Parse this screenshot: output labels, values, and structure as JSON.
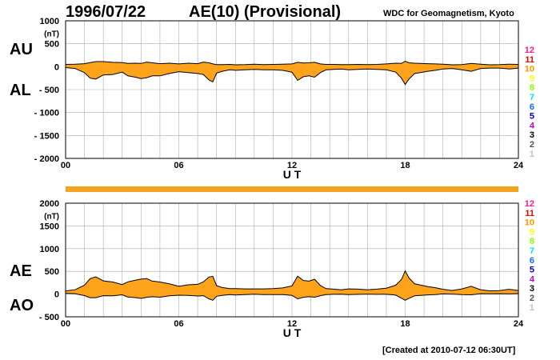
{
  "header": {
    "date": "1996/07/22",
    "title": "AE(10) (Provisional)",
    "org": "WDC for Geomagnetism, Kyoto"
  },
  "footer": {
    "created": "[Created at 2010-07-12 06:30UT]"
  },
  "colors": {
    "fill": "#ffa31a",
    "grid": "#aaaaaa",
    "line": "#000000",
    "bar": "#f5a41f",
    "station_scale": [
      "#ff1493",
      "#ee0000",
      "#ff9900",
      "#ffff00",
      "#88ff00",
      "#00e5ee",
      "#1e66ff",
      "#0000bb",
      "#cc00cc",
      "#000000",
      "#555555",
      "#c0c0c0"
    ]
  },
  "station_scale_labels": [
    "12",
    "11",
    "10",
    "9",
    "8",
    "7",
    "6",
    "5",
    "4",
    "3",
    "2",
    "1"
  ],
  "chart_data": [
    {
      "type": "area",
      "panel": "AU/AL",
      "labels": [
        "AU",
        "AL"
      ],
      "unit": "(nT)",
      "xlabel": "U T",
      "xlim": [
        0,
        24
      ],
      "xticks": [
        0,
        6,
        12,
        18,
        24
      ],
      "xtick_labels": [
        "00",
        "06",
        "12",
        "18",
        "24"
      ],
      "ylim": [
        -2000,
        1000
      ],
      "yticks": [
        1000,
        500,
        0,
        -500,
        -1000,
        -1500,
        -2000
      ],
      "ytick_labels": [
        "1000",
        "500",
        "0",
        "- 500",
        "- 1000",
        "- 1500",
        "- 2000"
      ],
      "grid": true,
      "x": [
        0,
        0.5,
        1.0,
        1.3,
        1.6,
        2.0,
        2.5,
        3.0,
        3.3,
        3.7,
        4.0,
        4.3,
        4.6,
        5.0,
        5.5,
        6.0,
        6.5,
        7.0,
        7.3,
        7.6,
        7.8,
        8.0,
        8.3,
        8.7,
        9.0,
        9.5,
        10.0,
        10.5,
        11.0,
        11.5,
        12.0,
        12.3,
        12.6,
        12.9,
        13.2,
        13.5,
        13.8,
        14.2,
        14.6,
        15.0,
        15.5,
        16.0,
        16.5,
        17.0,
        17.5,
        17.8,
        18.0,
        18.2,
        18.5,
        18.8,
        19.2,
        19.6,
        20.0,
        20.5,
        21.0,
        21.5,
        22.0,
        22.5,
        23.0,
        23.5,
        24.0
      ],
      "series": [
        {
          "name": "AU",
          "values": [
            50,
            55,
            65,
            90,
            110,
            110,
            95,
            90,
            70,
            75,
            70,
            100,
            85,
            65,
            75,
            60,
            75,
            65,
            100,
            85,
            60,
            45,
            45,
            50,
            40,
            45,
            55,
            45,
            50,
            55,
            60,
            95,
            80,
            85,
            95,
            60,
            50,
            50,
            45,
            45,
            50,
            45,
            50,
            60,
            75,
            70,
            120,
            85,
            75,
            70,
            65,
            60,
            55,
            40,
            45,
            70,
            55,
            40,
            45,
            55,
            50
          ]
        },
        {
          "name": "AL",
          "values": [
            -20,
            -40,
            -130,
            -250,
            -270,
            -180,
            -170,
            -120,
            -200,
            -230,
            -260,
            -240,
            -200,
            -200,
            -150,
            -110,
            -130,
            -150,
            -170,
            -290,
            -330,
            -140,
            -100,
            -70,
            -80,
            -70,
            -60,
            -70,
            -70,
            -80,
            -120,
            -300,
            -220,
            -200,
            -230,
            -130,
            -70,
            -60,
            -50,
            -70,
            -60,
            -50,
            -60,
            -70,
            -120,
            -250,
            -390,
            -270,
            -150,
            -130,
            -100,
            -80,
            -50,
            -40,
            -70,
            -100,
            -40,
            -30,
            -30,
            -50,
            -30
          ]
        }
      ]
    },
    {
      "type": "area",
      "panel": "AE/AO",
      "labels": [
        "AE",
        "AO"
      ],
      "unit": "(nT)",
      "xlabel": "U T",
      "xlim": [
        0,
        24
      ],
      "xticks": [
        0,
        6,
        12,
        18,
        24
      ],
      "xtick_labels": [
        "00",
        "06",
        "12",
        "18",
        "24"
      ],
      "ylim": [
        -500,
        2000
      ],
      "yticks": [
        2000,
        1500,
        1000,
        500,
        0,
        -500
      ],
      "ytick_labels": [
        "2000",
        "1500",
        "1000",
        "500",
        "0",
        "- 500"
      ],
      "grid": true,
      "x": [
        0,
        0.5,
        1.0,
        1.3,
        1.6,
        2.0,
        2.5,
        3.0,
        3.3,
        3.7,
        4.0,
        4.3,
        4.6,
        5.0,
        5.5,
        6.0,
        6.5,
        7.0,
        7.3,
        7.6,
        7.8,
        8.0,
        8.3,
        8.7,
        9.0,
        9.5,
        10.0,
        10.5,
        11.0,
        11.5,
        12.0,
        12.3,
        12.6,
        12.9,
        13.2,
        13.5,
        13.8,
        14.2,
        14.6,
        15.0,
        15.5,
        16.0,
        16.5,
        17.0,
        17.5,
        17.8,
        18.0,
        18.2,
        18.5,
        18.8,
        19.2,
        19.6,
        20.0,
        20.5,
        21.0,
        21.5,
        22.0,
        22.5,
        23.0,
        23.5,
        24.0
      ],
      "series": [
        {
          "name": "AE",
          "values": [
            70,
            95,
            195,
            340,
            380,
            290,
            265,
            210,
            270,
            305,
            330,
            340,
            285,
            265,
            225,
            170,
            205,
            215,
            270,
            375,
            390,
            185,
            145,
            120,
            120,
            115,
            115,
            115,
            120,
            135,
            180,
            395,
            300,
            285,
            325,
            190,
            120,
            110,
            95,
            115,
            110,
            95,
            110,
            130,
            195,
            320,
            510,
            355,
            225,
            200,
            165,
            140,
            105,
            80,
            115,
            170,
            95,
            70,
            75,
            105,
            80
          ]
        },
        {
          "name": "AO",
          "values": [
            15,
            8,
            -33,
            -80,
            -80,
            -35,
            -38,
            -15,
            -65,
            -78,
            -95,
            -70,
            -58,
            -68,
            -38,
            -25,
            -28,
            -43,
            -35,
            -103,
            -135,
            -48,
            -28,
            -10,
            -20,
            -13,
            -3,
            -13,
            -10,
            -13,
            -30,
            -103,
            -70,
            -58,
            -68,
            -35,
            -10,
            -5,
            -3,
            -13,
            -5,
            -3,
            -5,
            -5,
            -23,
            -90,
            -135,
            -93,
            -38,
            -30,
            -18,
            -10,
            3,
            0,
            -13,
            -15,
            8,
            5,
            8,
            3,
            10
          ]
        }
      ]
    }
  ]
}
